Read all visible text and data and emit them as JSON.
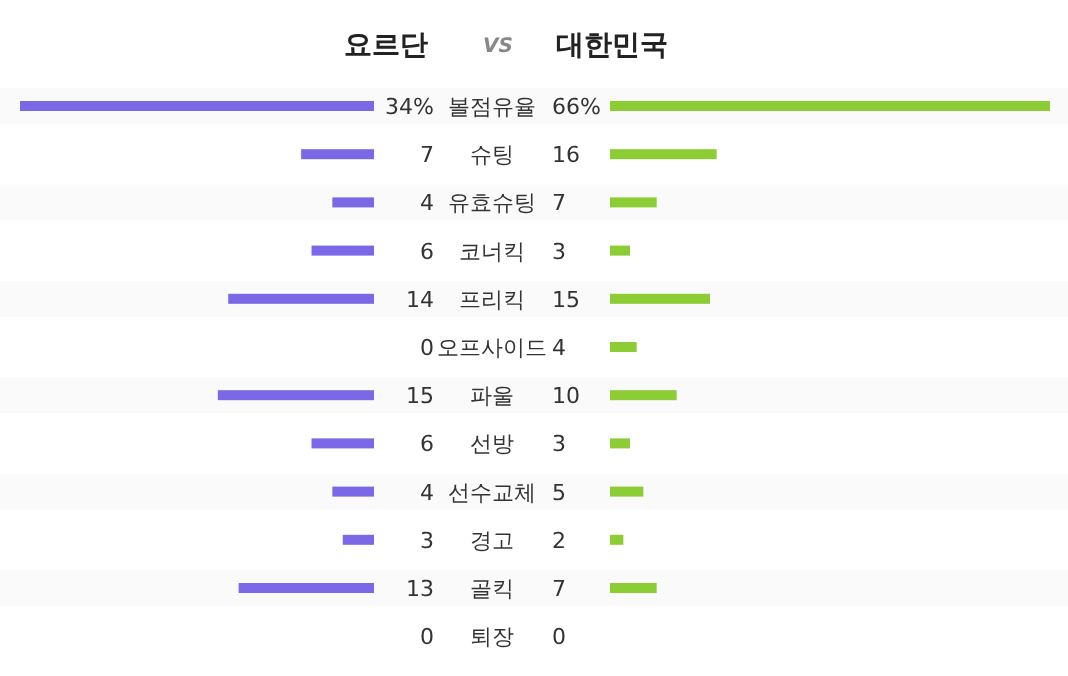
{
  "chart_data": [
    {
      "type": "bar",
      "orientation": "horizontal",
      "legend": "top",
      "annotations": [
        "VS"
      ],
      "xlim": [
        34,
        0
      ],
      "tick_labels": false,
      "categories": [
        "볼점유율",
        "슈팅",
        "유효슈팅",
        "코너킥",
        "프리킥",
        "오프사이드",
        "파울",
        "선방",
        "선수교체",
        "경고",
        "골킥",
        "퇴장"
      ],
      "series": [
        {
          "name": "요르단",
          "color": "#7b68e6",
          "values": [
            34,
            7,
            4,
            6,
            14,
            0,
            15,
            6,
            4,
            3,
            13,
            0
          ],
          "value_labels": [
            "34%",
            "7",
            "4",
            "6",
            "14",
            "0",
            "15",
            "6",
            "4",
            "3",
            "13",
            "0"
          ]
        }
      ]
    },
    {
      "type": "bar",
      "orientation": "horizontal",
      "legend": "top",
      "xlim": [
        0,
        66
      ],
      "categories": [
        null,
        null,
        null,
        null,
        null,
        null,
        null,
        null,
        null,
        null,
        null,
        null
      ],
      "series": [
        {
          "name": "대한민국",
          "color": "#8ccc34",
          "values": [
            66,
            16,
            7,
            3,
            15,
            4,
            10,
            3,
            5,
            2,
            7,
            0
          ],
          "value_labels": [
            "66%",
            "16",
            "7",
            "3",
            "15",
            "4",
            "10",
            "3",
            "5",
            "2",
            "7",
            "0"
          ]
        }
      ]
    }
  ]
}
